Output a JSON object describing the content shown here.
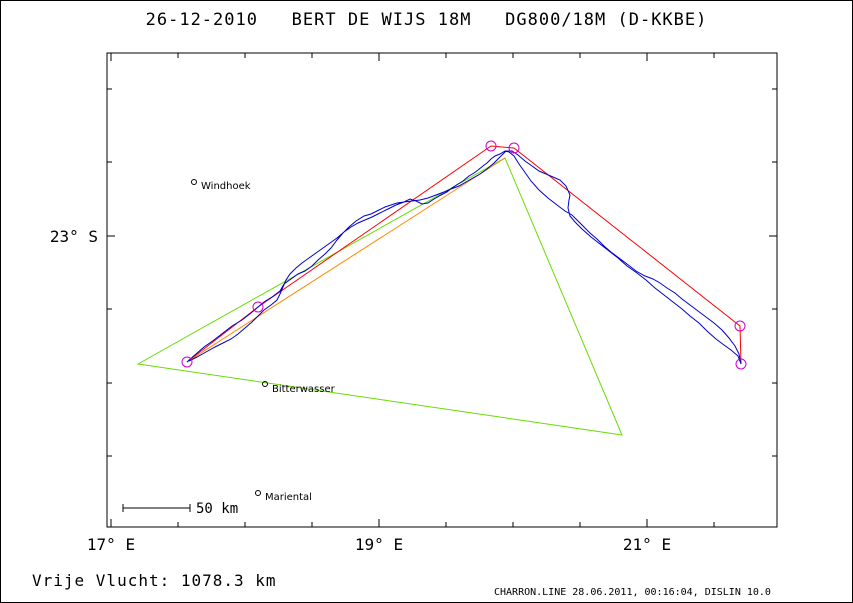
{
  "title": "26-12-2010   BERT DE WIJS 18M   DG800/18M (D-KKBE)",
  "footer": {
    "distance_label": "Vrije Vlucht: 1078.3 km",
    "credit": "CHARRON.LINE 28.06.2011, 00:16:04, DISLIN 10.0"
  },
  "axes": {
    "x_ticks": [
      "17° E",
      "19° E",
      "21° E"
    ],
    "y_ticks": [
      "23° S"
    ]
  },
  "places": [
    {
      "name": "Windhoek"
    },
    {
      "name": "Bitterwasser"
    },
    {
      "name": "Mariental"
    }
  ],
  "scale_bar": {
    "label": "50 km"
  },
  "colors": {
    "track": "#0000cc",
    "task": "#ff0000",
    "triangle": "#66dd00",
    "turnpoint": "#cc00cc"
  }
}
